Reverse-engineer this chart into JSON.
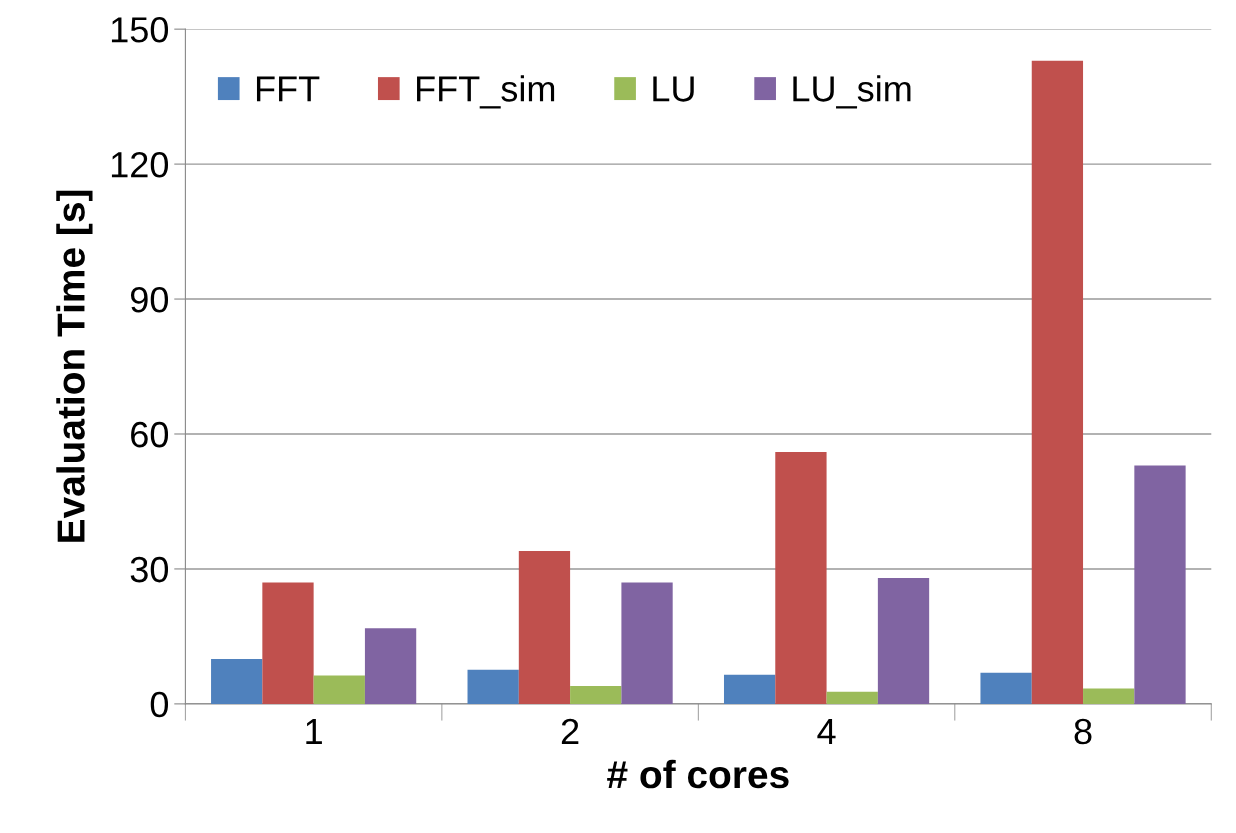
{
  "chart_data": {
    "type": "bar",
    "xlabel": "# of cores",
    "ylabel": "Evaluation Time [s]",
    "categories": [
      "1",
      "2",
      "4",
      "8"
    ],
    "series": [
      {
        "name": "FFT",
        "color": "#4f81bd",
        "values": [
          10,
          7.6,
          6.5,
          6.9
        ]
      },
      {
        "name": "FFT_sim",
        "color": "#c0504d",
        "values": [
          27,
          34,
          56,
          143
        ]
      },
      {
        "name": "LU",
        "color": "#9bbb59",
        "values": [
          6.3,
          4,
          2.7,
          3.4
        ]
      },
      {
        "name": "LU_sim",
        "color": "#8064a2",
        "values": [
          16.8,
          27,
          28,
          53
        ]
      }
    ],
    "ylim": [
      0,
      150
    ],
    "yticks": [
      0,
      30,
      60,
      90,
      120,
      150
    ],
    "grid": "y",
    "legend": "top left"
  }
}
